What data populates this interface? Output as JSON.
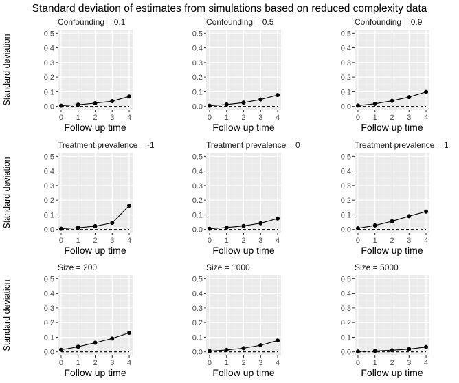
{
  "title": "Standard deviation of estimates from simulations based on reduced complexity data",
  "chart_data": {
    "type": "line",
    "layout": "facet-grid 3x3",
    "title": "Standard deviation of estimates from simulations based on reduced complexity data",
    "xlabel": "Follow up time",
    "ylabel": "Standard deviation",
    "xlim": [
      0,
      4
    ],
    "ylim": [
      0,
      0.5
    ],
    "xticks": [
      0,
      1,
      2,
      3,
      4
    ],
    "yticks": [
      "0.0",
      "0.1",
      "0.2",
      "0.3",
      "0.4",
      "0.5"
    ],
    "grid": true,
    "reference_line": {
      "y": 0,
      "style": "dashed"
    },
    "panels": [
      {
        "title": "Confounding = 0.1",
        "x": [
          0,
          1,
          2,
          3,
          4
        ],
        "y": [
          0.005,
          0.012,
          0.022,
          0.036,
          0.068
        ]
      },
      {
        "title": "Confounding = 0.5",
        "x": [
          0,
          1,
          2,
          3,
          4
        ],
        "y": [
          0.005,
          0.013,
          0.026,
          0.047,
          0.078
        ]
      },
      {
        "title": "Confounding = 0.9",
        "x": [
          0,
          1,
          2,
          3,
          4
        ],
        "y": [
          0.006,
          0.018,
          0.038,
          0.064,
          0.099
        ]
      },
      {
        "title": "Treatment prevalence = -1",
        "x": [
          0,
          1,
          2,
          3,
          4
        ],
        "y": [
          0.005,
          0.012,
          0.022,
          0.045,
          0.163
        ]
      },
      {
        "title": "Treatment prevalence = 0",
        "x": [
          0,
          1,
          2,
          3,
          4
        ],
        "y": [
          0.005,
          0.013,
          0.024,
          0.042,
          0.075
        ]
      },
      {
        "title": "Treatment prevalence = 1",
        "x": [
          0,
          1,
          2,
          3,
          4
        ],
        "y": [
          0.008,
          0.027,
          0.056,
          0.091,
          0.122
        ]
      },
      {
        "title": "Size = 200",
        "x": [
          0,
          1,
          2,
          3,
          4
        ],
        "y": [
          0.014,
          0.035,
          0.062,
          0.091,
          0.13
        ]
      },
      {
        "title": "Size = 1000",
        "x": [
          0,
          1,
          2,
          3,
          4
        ],
        "y": [
          0.005,
          0.013,
          0.025,
          0.045,
          0.077
        ]
      },
      {
        "title": "Size = 5000",
        "x": [
          0,
          1,
          2,
          3,
          4
        ],
        "y": [
          0.002,
          0.006,
          0.011,
          0.019,
          0.033
        ]
      }
    ]
  }
}
